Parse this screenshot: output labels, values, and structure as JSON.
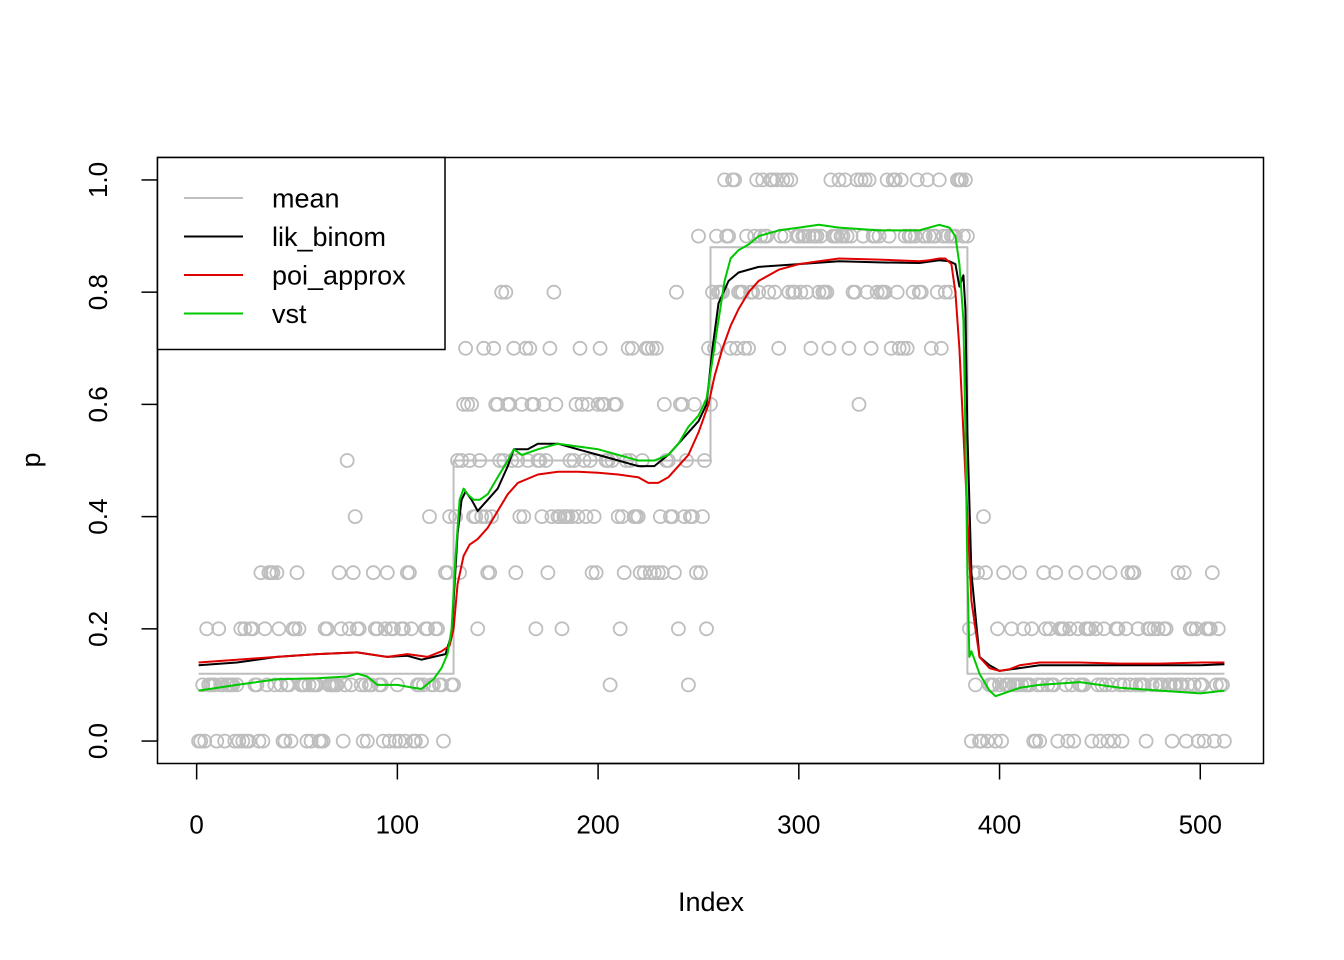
{
  "chart_data": {
    "type": "line",
    "title": "",
    "xlabel": "Index",
    "ylabel": "p",
    "xlim": [
      -19.5,
      531.5
    ],
    "ylim": [
      -0.04,
      1.04
    ],
    "x_ticks": [
      "0",
      "100",
      "200",
      "300",
      "400",
      "500"
    ],
    "y_ticks": [
      "0.0",
      "0.2",
      "0.4",
      "0.6",
      "0.8",
      "1.0"
    ],
    "legend_position": "top-left",
    "colors": {
      "points": "#bebebe",
      "mean": "#bebebe",
      "lik_binom": "#000000",
      "poi_approx": "#df0000",
      "vst": "#00c800"
    },
    "scatter_points": {
      "name": "",
      "note": "observed proportions, one per index 1..512, shown as open gray circles",
      "levels": [
        0.0,
        0.1,
        0.2,
        0.3,
        0.4,
        0.5,
        0.6,
        0.7,
        0.8,
        0.9,
        1.0
      ]
    },
    "series": [
      {
        "name": "mean",
        "style": "step",
        "x": [
          1,
          128,
          128,
          256,
          256,
          384,
          384,
          512
        ],
        "y": [
          0.12,
          0.12,
          0.5,
          0.5,
          0.88,
          0.88,
          0.12,
          0.12
        ]
      },
      {
        "name": "lik_binom",
        "x": [
          1,
          20,
          40,
          60,
          80,
          95,
          105,
          112,
          118,
          124,
          127,
          130,
          132,
          134,
          137,
          140,
          145,
          150,
          155,
          158,
          160,
          165,
          170,
          180,
          190,
          200,
          210,
          220,
          228,
          235,
          240,
          245,
          250,
          254,
          257,
          260,
          265,
          270,
          280,
          300,
          320,
          340,
          360,
          370,
          375,
          378,
          380,
          382,
          383,
          384,
          386,
          390,
          395,
          400,
          410,
          420,
          440,
          460,
          480,
          500,
          512
        ],
        "y": [
          0.135,
          0.14,
          0.15,
          0.155,
          0.158,
          0.15,
          0.152,
          0.145,
          0.15,
          0.155,
          0.19,
          0.37,
          0.43,
          0.445,
          0.43,
          0.41,
          0.43,
          0.45,
          0.49,
          0.52,
          0.52,
          0.52,
          0.53,
          0.53,
          0.52,
          0.51,
          0.5,
          0.49,
          0.49,
          0.51,
          0.53,
          0.55,
          0.57,
          0.6,
          0.7,
          0.78,
          0.82,
          0.835,
          0.845,
          0.85,
          0.855,
          0.853,
          0.852,
          0.857,
          0.855,
          0.85,
          0.81,
          0.83,
          0.77,
          0.55,
          0.3,
          0.15,
          0.135,
          0.125,
          0.13,
          0.135,
          0.135,
          0.135,
          0.135,
          0.135,
          0.137
        ]
      },
      {
        "name": "poi_approx",
        "x": [
          1,
          20,
          40,
          60,
          80,
          95,
          105,
          115,
          122,
          126,
          128,
          130,
          133,
          136,
          140,
          145,
          150,
          155,
          160,
          170,
          180,
          190,
          200,
          210,
          220,
          225,
          230,
          235,
          240,
          245,
          250,
          255,
          258,
          262,
          266,
          270,
          275,
          280,
          290,
          300,
          310,
          320,
          340,
          360,
          365,
          370,
          373,
          376,
          378,
          380,
          382,
          384,
          386,
          390,
          395,
          400,
          405,
          410,
          420,
          440,
          460,
          480,
          500,
          512
        ],
        "y": [
          0.14,
          0.145,
          0.15,
          0.155,
          0.158,
          0.15,
          0.155,
          0.15,
          0.16,
          0.17,
          0.2,
          0.28,
          0.33,
          0.35,
          0.36,
          0.38,
          0.41,
          0.44,
          0.46,
          0.475,
          0.48,
          0.48,
          0.478,
          0.475,
          0.47,
          0.46,
          0.46,
          0.47,
          0.49,
          0.51,
          0.55,
          0.6,
          0.65,
          0.7,
          0.74,
          0.77,
          0.8,
          0.82,
          0.84,
          0.85,
          0.855,
          0.86,
          0.858,
          0.855,
          0.857,
          0.86,
          0.86,
          0.85,
          0.8,
          0.7,
          0.55,
          0.4,
          0.25,
          0.15,
          0.13,
          0.125,
          0.128,
          0.135,
          0.14,
          0.14,
          0.138,
          0.138,
          0.14,
          0.14
        ]
      },
      {
        "name": "vst",
        "x": [
          1,
          20,
          40,
          60,
          75,
          80,
          85,
          90,
          100,
          108,
          112,
          118,
          122,
          125,
          127,
          129,
          131,
          133,
          135,
          138,
          141,
          145,
          150,
          155,
          158,
          162,
          170,
          180,
          190,
          200,
          210,
          220,
          228,
          235,
          240,
          245,
          250,
          254,
          257,
          260,
          263,
          266,
          270,
          275,
          280,
          290,
          300,
          310,
          320,
          340,
          360,
          370,
          375,
          378,
          380,
          382,
          383,
          384,
          385,
          386,
          387,
          390,
          395,
          398,
          402,
          410,
          420,
          440,
          460,
          480,
          500,
          512
        ],
        "y": [
          0.09,
          0.1,
          0.11,
          0.112,
          0.115,
          0.12,
          0.115,
          0.1,
          0.1,
          0.095,
          0.093,
          0.11,
          0.13,
          0.155,
          0.2,
          0.33,
          0.43,
          0.45,
          0.44,
          0.43,
          0.43,
          0.44,
          0.47,
          0.5,
          0.52,
          0.51,
          0.52,
          0.53,
          0.525,
          0.52,
          0.51,
          0.5,
          0.5,
          0.51,
          0.53,
          0.56,
          0.58,
          0.61,
          0.68,
          0.75,
          0.82,
          0.86,
          0.875,
          0.885,
          0.9,
          0.91,
          0.915,
          0.92,
          0.915,
          0.91,
          0.91,
          0.92,
          0.915,
          0.9,
          0.85,
          0.75,
          0.55,
          0.3,
          0.15,
          0.16,
          0.15,
          0.12,
          0.09,
          0.08,
          0.085,
          0.095,
          0.1,
          0.105,
          0.095,
          0.09,
          0.085,
          0.09
        ]
      }
    ]
  }
}
